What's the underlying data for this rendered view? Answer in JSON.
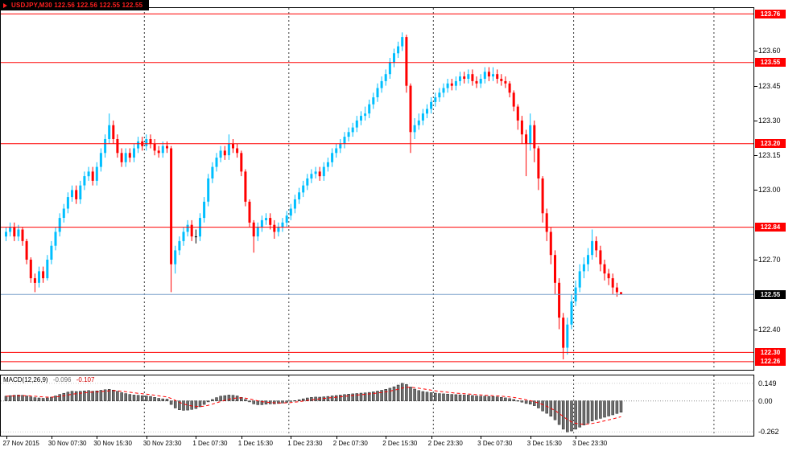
{
  "window": {
    "symbol_label": "USDJPY,M30 122.56 122.56 122.55 122.55",
    "indicator": {
      "name": "MACD(12,26,9)",
      "main_value": "-0.096",
      "signal_value": "-0.107"
    }
  },
  "palette": {
    "bull": "#00bfff",
    "bear": "#ff0000",
    "doji": "#000000",
    "level_line": "#ff0000",
    "level_label_bg": "#ff0000",
    "current_label_bg": "#000000",
    "current_price_line": "#7aa0cc",
    "hist_fill": "#6f6f6f",
    "hist_stroke": "#222222",
    "signal": "#ff0000",
    "separator_dash": "#3c3c3c"
  },
  "chart_data": [
    {
      "type": "candlestick",
      "symbol": "USDJPY",
      "timeframe": "M30",
      "ylim": [
        122.225,
        123.785
      ],
      "y_ticks": [
        123.6,
        123.45,
        123.3,
        123.15,
        123.0,
        122.7,
        122.4
      ],
      "levels": [
        123.76,
        123.55,
        123.2,
        122.84,
        122.3,
        122.26
      ],
      "current_price": 122.55,
      "separators": [
        34,
        69,
        104,
        138,
        172
      ],
      "x_labels": [
        {
          "text": "27 Nov 2015",
          "index": 0
        },
        {
          "text": "30 Nov 07:30",
          "index": 11
        },
        {
          "text": "30 Nov 15:30",
          "index": 22
        },
        {
          "text": "30 Nov 23:30",
          "index": 34
        },
        {
          "text": "1 Dec 07:30",
          "index": 46
        },
        {
          "text": "1 Dec 15:30",
          "index": 57
        },
        {
          "text": "1 Dec 23:30",
          "index": 69
        },
        {
          "text": "2 Dec 07:30",
          "index": 80
        },
        {
          "text": "2 Dec 15:30",
          "index": 92
        },
        {
          "text": "2 Dec 23:30",
          "index": 103
        },
        {
          "text": "3 Dec 07:30",
          "index": 115
        },
        {
          "text": "3 Dec 15:30",
          "index": 127
        },
        {
          "text": "3 Dec 23:30",
          "index": 138
        }
      ],
      "ohlc": [
        [
          122.8,
          122.84,
          122.78,
          122.82
        ],
        [
          122.82,
          122.86,
          122.8,
          122.84
        ],
        [
          122.84,
          122.86,
          122.78,
          122.8
        ],
        [
          122.8,
          122.85,
          122.78,
          122.83
        ],
        [
          122.83,
          122.84,
          122.76,
          122.78
        ],
        [
          122.78,
          122.79,
          122.68,
          122.7
        ],
        [
          122.7,
          122.71,
          122.6,
          122.62
        ],
        [
          122.62,
          122.64,
          122.56,
          122.6
        ],
        [
          122.6,
          122.67,
          122.58,
          122.65
        ],
        [
          122.65,
          122.67,
          122.6,
          122.62
        ],
        [
          122.62,
          122.72,
          122.61,
          122.7
        ],
        [
          122.7,
          122.78,
          122.68,
          122.76
        ],
        [
          122.76,
          122.84,
          122.74,
          122.82
        ],
        [
          122.82,
          122.9,
          122.8,
          122.88
        ],
        [
          122.88,
          122.94,
          122.86,
          122.92
        ],
        [
          122.92,
          122.99,
          122.9,
          122.97
        ],
        [
          122.97,
          123.02,
          122.95,
          123.0
        ],
        [
          123.0,
          123.02,
          122.94,
          122.96
        ],
        [
          122.96,
          123.04,
          122.94,
          123.02
        ],
        [
          123.02,
          123.08,
          123.0,
          123.06
        ],
        [
          123.06,
          123.1,
          123.04,
          123.08
        ],
        [
          123.08,
          123.1,
          123.02,
          123.04
        ],
        [
          123.04,
          123.12,
          123.02,
          123.1
        ],
        [
          123.1,
          123.18,
          123.08,
          123.16
        ],
        [
          123.16,
          123.24,
          123.14,
          123.22
        ],
        [
          123.22,
          123.33,
          123.2,
          123.28
        ],
        [
          123.28,
          123.3,
          123.2,
          123.22
        ],
        [
          123.22,
          123.24,
          123.14,
          123.16
        ],
        [
          123.16,
          123.18,
          123.1,
          123.12
        ],
        [
          123.12,
          123.18,
          123.1,
          123.16
        ],
        [
          123.16,
          123.18,
          123.12,
          123.14
        ],
        [
          123.14,
          123.2,
          123.12,
          123.18
        ],
        [
          123.18,
          123.23,
          123.16,
          123.21
        ],
        [
          123.21,
          123.23,
          123.17,
          123.19
        ],
        [
          123.19,
          123.24,
          123.17,
          123.22
        ],
        [
          123.22,
          123.24,
          123.18,
          123.2
        ],
        [
          123.2,
          123.22,
          123.15,
          123.17
        ],
        [
          123.17,
          123.19,
          123.14,
          123.16
        ],
        [
          123.16,
          123.21,
          123.14,
          123.19
        ],
        [
          123.19,
          123.21,
          123.16,
          123.18
        ],
        [
          123.18,
          123.19,
          122.56,
          122.68
        ],
        [
          122.68,
          122.76,
          122.64,
          122.74
        ],
        [
          122.74,
          122.8,
          122.72,
          122.78
        ],
        [
          122.78,
          122.84,
          122.76,
          122.82
        ],
        [
          122.82,
          122.87,
          122.8,
          122.85
        ],
        [
          122.85,
          122.87,
          122.78,
          122.8
        ],
        [
          122.8,
          122.83,
          122.77,
          122.8
        ],
        [
          122.8,
          122.9,
          122.78,
          122.88
        ],
        [
          122.88,
          122.97,
          122.86,
          122.95
        ],
        [
          122.95,
          123.07,
          122.93,
          123.05
        ],
        [
          123.05,
          123.12,
          123.03,
          123.1
        ],
        [
          123.1,
          123.16,
          123.08,
          123.14
        ],
        [
          123.14,
          123.19,
          123.12,
          123.17
        ],
        [
          123.17,
          123.19,
          123.13,
          123.15
        ],
        [
          123.15,
          123.24,
          123.13,
          123.2
        ],
        [
          123.2,
          123.22,
          123.16,
          123.18
        ],
        [
          123.18,
          123.2,
          123.14,
          123.16
        ],
        [
          123.16,
          123.17,
          123.06,
          123.08
        ],
        [
          123.08,
          123.09,
          122.93,
          122.95
        ],
        [
          122.95,
          122.96,
          122.84,
          122.86
        ],
        [
          122.86,
          122.87,
          122.73,
          122.8
        ],
        [
          122.8,
          122.86,
          122.78,
          122.84
        ],
        [
          122.84,
          122.89,
          122.82,
          122.87
        ],
        [
          122.87,
          122.9,
          122.85,
          122.88
        ],
        [
          122.88,
          122.9,
          122.83,
          122.85
        ],
        [
          122.85,
          122.87,
          122.79,
          122.82
        ],
        [
          122.82,
          122.86,
          122.8,
          122.84
        ],
        [
          122.84,
          122.88,
          122.82,
          122.86
        ],
        [
          122.86,
          122.91,
          122.84,
          122.89
        ],
        [
          122.89,
          122.94,
          122.87,
          122.92
        ],
        [
          122.92,
          122.98,
          122.9,
          122.96
        ],
        [
          122.96,
          123.01,
          122.94,
          122.99
        ],
        [
          122.99,
          123.04,
          122.97,
          123.02
        ],
        [
          123.02,
          123.07,
          123.0,
          123.05
        ],
        [
          123.05,
          123.09,
          123.03,
          123.07
        ],
        [
          123.07,
          123.1,
          123.05,
          123.08
        ],
        [
          123.08,
          123.1,
          123.04,
          123.06
        ],
        [
          123.06,
          123.12,
          123.04,
          123.1
        ],
        [
          123.1,
          123.14,
          123.08,
          123.12
        ],
        [
          123.12,
          123.18,
          123.1,
          123.16
        ],
        [
          123.16,
          123.2,
          123.14,
          123.18
        ],
        [
          123.18,
          123.22,
          123.16,
          123.2
        ],
        [
          123.2,
          123.25,
          123.18,
          123.23
        ],
        [
          123.23,
          123.27,
          123.21,
          123.25
        ],
        [
          123.25,
          123.29,
          123.23,
          123.27
        ],
        [
          123.27,
          123.32,
          123.25,
          123.3
        ],
        [
          123.3,
          123.34,
          123.28,
          123.32
        ],
        [
          123.32,
          123.36,
          123.3,
          123.33
        ],
        [
          123.33,
          123.39,
          123.31,
          123.37
        ],
        [
          123.37,
          123.42,
          123.35,
          123.4
        ],
        [
          123.4,
          123.46,
          123.38,
          123.44
        ],
        [
          123.44,
          123.49,
          123.42,
          123.47
        ],
        [
          123.47,
          123.52,
          123.45,
          123.5
        ],
        [
          123.5,
          123.57,
          123.48,
          123.55
        ],
        [
          123.55,
          123.61,
          123.53,
          123.59
        ],
        [
          123.59,
          123.64,
          123.57,
          123.62
        ],
        [
          123.62,
          123.68,
          123.6,
          123.66
        ],
        [
          123.66,
          123.67,
          123.42,
          123.45
        ],
        [
          123.45,
          123.46,
          123.16,
          123.25
        ],
        [
          123.25,
          123.31,
          123.22,
          123.28
        ],
        [
          123.28,
          123.33,
          123.26,
          123.3
        ],
        [
          123.3,
          123.35,
          123.28,
          123.33
        ],
        [
          123.33,
          123.37,
          123.31,
          123.35
        ],
        [
          123.35,
          123.4,
          123.33,
          123.38
        ],
        [
          123.38,
          123.42,
          123.36,
          123.4
        ],
        [
          123.4,
          123.44,
          123.38,
          123.42
        ],
        [
          123.42,
          123.46,
          123.4,
          123.44
        ],
        [
          123.44,
          123.48,
          123.42,
          123.46
        ],
        [
          123.46,
          123.48,
          123.43,
          123.45
        ],
        [
          123.45,
          123.49,
          123.43,
          123.47
        ],
        [
          123.47,
          123.51,
          123.45,
          123.49
        ],
        [
          123.49,
          123.51,
          123.46,
          123.48
        ],
        [
          123.48,
          123.52,
          123.46,
          123.5
        ],
        [
          123.5,
          123.52,
          123.45,
          123.47
        ],
        [
          123.47,
          123.49,
          123.44,
          123.46
        ],
        [
          123.46,
          123.5,
          123.44,
          123.48
        ],
        [
          123.48,
          123.53,
          123.46,
          123.51
        ],
        [
          123.51,
          123.53,
          123.47,
          123.49
        ],
        [
          123.49,
          123.53,
          123.47,
          123.5
        ],
        [
          123.5,
          123.52,
          123.46,
          123.48
        ],
        [
          123.48,
          123.5,
          123.45,
          123.47
        ],
        [
          123.47,
          123.49,
          123.44,
          123.46
        ],
        [
          123.46,
          123.47,
          123.4,
          123.42
        ],
        [
          123.42,
          123.43,
          123.34,
          123.36
        ],
        [
          123.36,
          123.37,
          123.26,
          123.3
        ],
        [
          123.3,
          123.32,
          123.2,
          123.24
        ],
        [
          123.24,
          123.26,
          123.06,
          123.2
        ],
        [
          123.2,
          123.33,
          123.17,
          123.28
        ],
        [
          123.28,
          123.3,
          123.12,
          123.18
        ],
        [
          123.18,
          123.19,
          123.0,
          123.05
        ],
        [
          123.05,
          123.06,
          122.86,
          122.9
        ],
        [
          122.9,
          122.92,
          122.78,
          122.82
        ],
        [
          122.82,
          122.84,
          122.68,
          122.72
        ],
        [
          122.72,
          122.74,
          122.55,
          122.6
        ],
        [
          122.6,
          122.62,
          122.4,
          122.45
        ],
        [
          122.45,
          122.47,
          122.27,
          122.32
        ],
        [
          122.32,
          122.45,
          122.29,
          122.42
        ],
        [
          122.42,
          122.55,
          122.4,
          122.52
        ],
        [
          122.52,
          122.61,
          122.5,
          122.58
        ],
        [
          122.58,
          122.68,
          122.56,
          122.65
        ],
        [
          122.65,
          122.71,
          122.62,
          122.68
        ],
        [
          122.68,
          122.75,
          122.65,
          122.72
        ],
        [
          122.72,
          122.83,
          122.7,
          122.78
        ],
        [
          122.78,
          122.8,
          122.71,
          122.74
        ],
        [
          122.74,
          122.76,
          122.65,
          122.68
        ],
        [
          122.68,
          122.7,
          122.61,
          122.64
        ],
        [
          122.64,
          122.66,
          122.59,
          122.62
        ],
        [
          122.62,
          122.64,
          122.55,
          122.58
        ],
        [
          122.58,
          122.6,
          122.54,
          122.56
        ],
        [
          122.56,
          122.56,
          122.55,
          122.55
        ]
      ]
    },
    {
      "type": "bar",
      "name": "MACD(12,26,9)",
      "ylim": [
        -0.295,
        0.216
      ],
      "scale_marks": [
        {
          "label": "0.149",
          "value": 0.149
        },
        {
          "label": "0.00",
          "value": 0
        },
        {
          "label": "-0.262",
          "value": -0.262
        }
      ],
      "values": [
        0.04,
        0.045,
        0.048,
        0.05,
        0.048,
        0.042,
        0.035,
        0.028,
        0.025,
        0.022,
        0.025,
        0.032,
        0.042,
        0.055,
        0.065,
        0.075,
        0.082,
        0.08,
        0.082,
        0.085,
        0.088,
        0.082,
        0.085,
        0.09,
        0.095,
        0.098,
        0.092,
        0.082,
        0.07,
        0.062,
        0.055,
        0.05,
        0.048,
        0.044,
        0.042,
        0.038,
        0.03,
        0.022,
        0.018,
        0.015,
        -0.03,
        -0.06,
        -0.075,
        -0.08,
        -0.078,
        -0.072,
        -0.065,
        -0.05,
        -0.03,
        -0.008,
        0.012,
        0.028,
        0.04,
        0.045,
        0.05,
        0.048,
        0.042,
        0.03,
        0.012,
        -0.008,
        -0.025,
        -0.032,
        -0.032,
        -0.028,
        -0.025,
        -0.025,
        -0.022,
        -0.018,
        -0.012,
        -0.005,
        0.003,
        0.01,
        0.018,
        0.025,
        0.03,
        0.033,
        0.032,
        0.035,
        0.038,
        0.042,
        0.046,
        0.05,
        0.054,
        0.057,
        0.06,
        0.063,
        0.066,
        0.068,
        0.072,
        0.077,
        0.083,
        0.09,
        0.098,
        0.108,
        0.12,
        0.134,
        0.149,
        0.14,
        0.118,
        0.1,
        0.088,
        0.08,
        0.074,
        0.07,
        0.066,
        0.062,
        0.06,
        0.058,
        0.055,
        0.053,
        0.052,
        0.05,
        0.05,
        0.046,
        0.042,
        0.04,
        0.04,
        0.038,
        0.037,
        0.034,
        0.03,
        0.026,
        0.02,
        0.012,
        0.002,
        -0.01,
        -0.022,
        -0.028,
        -0.04,
        -0.06,
        -0.085,
        -0.105,
        -0.13,
        -0.16,
        -0.2,
        -0.24,
        -0.262,
        -0.255,
        -0.24,
        -0.222,
        -0.205,
        -0.188,
        -0.17,
        -0.158,
        -0.148,
        -0.138,
        -0.128,
        -0.118,
        -0.106,
        -0.096
      ]
    }
  ]
}
